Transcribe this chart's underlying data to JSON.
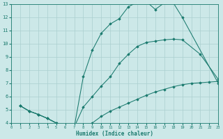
{
  "line1_x": [
    1,
    2,
    3,
    4,
    5,
    6,
    7,
    8,
    9,
    10,
    11,
    12,
    13,
    14,
    15,
    16,
    17,
    18,
    19,
    23
  ],
  "line1_y": [
    5.3,
    4.9,
    4.65,
    4.35,
    4.0,
    3.78,
    3.7,
    7.5,
    9.5,
    10.8,
    11.5,
    11.9,
    12.8,
    13.15,
    13.2,
    12.6,
    13.1,
    13.1,
    12.0,
    7.0
  ],
  "line2_x": [
    1,
    2,
    3,
    4,
    5,
    6,
    7,
    8,
    9,
    10,
    11,
    12,
    13,
    14,
    15,
    16,
    17,
    18,
    19,
    21,
    23
  ],
  "line2_y": [
    5.3,
    4.9,
    4.65,
    4.35,
    4.0,
    3.78,
    3.7,
    5.2,
    6.0,
    6.8,
    7.5,
    8.5,
    9.2,
    9.8,
    10.1,
    10.2,
    10.3,
    10.35,
    10.3,
    9.2,
    7.3
  ],
  "line3_x": [
    1,
    2,
    3,
    4,
    5,
    6,
    7,
    8,
    9,
    10,
    11,
    12,
    13,
    14,
    15,
    16,
    17,
    18,
    19,
    20,
    21,
    22,
    23
  ],
  "line3_y": [
    5.3,
    4.9,
    4.65,
    4.35,
    4.0,
    3.78,
    3.7,
    3.75,
    4.0,
    4.5,
    4.9,
    5.2,
    5.5,
    5.8,
    6.1,
    6.35,
    6.55,
    6.75,
    6.9,
    7.0,
    7.05,
    7.1,
    7.15
  ],
  "color": "#1a7a6e",
  "bg_color": "#cce8e8",
  "grid_color": "#aacfcf",
  "xlabel": "Humidex (Indice chaleur)",
  "xlim": [
    0,
    23
  ],
  "ylim": [
    4,
    13
  ],
  "yticks": [
    4,
    5,
    6,
    7,
    8,
    9,
    10,
    11,
    12,
    13
  ],
  "xticks": [
    0,
    1,
    2,
    3,
    4,
    5,
    6,
    7,
    8,
    9,
    10,
    11,
    12,
    13,
    14,
    15,
    16,
    17,
    18,
    19,
    20,
    21,
    22,
    23
  ]
}
